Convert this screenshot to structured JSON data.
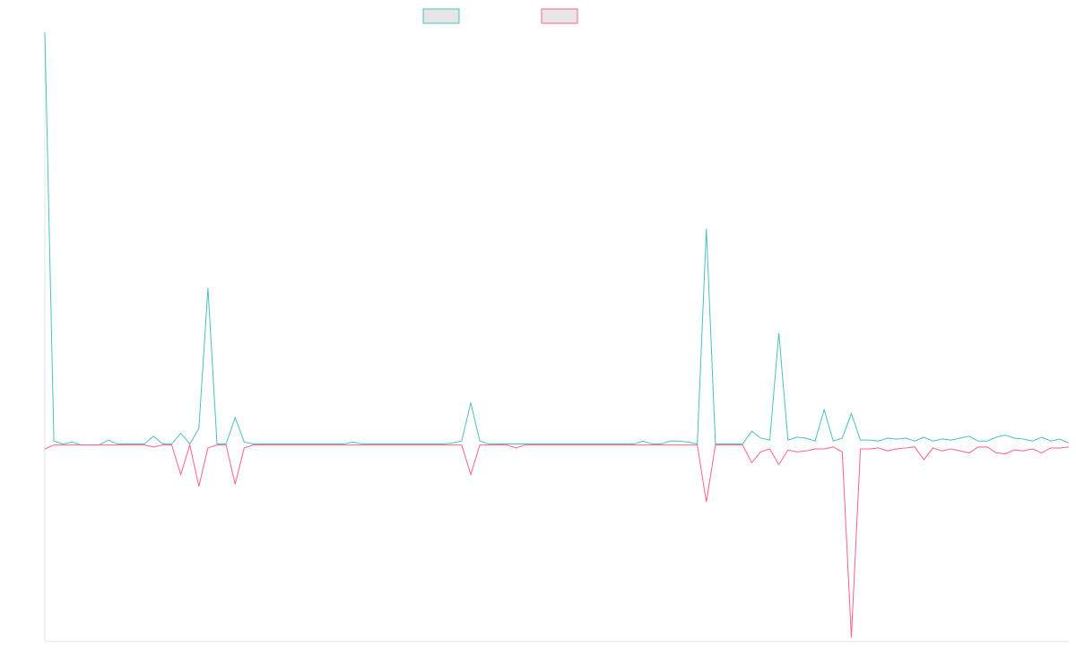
{
  "chart_data": {
    "type": "line",
    "title": "",
    "xlabel": "",
    "ylabel": "",
    "grid": false,
    "legend": "top-center",
    "ylim": [
      -100,
      210
    ],
    "series": [
      {
        "color": "#4bc0c0",
        "legend_fill": "#e6e6e6",
        "values": [
          210,
          2,
          0.5,
          1.5,
          0,
          0,
          0,
          2.5,
          0.5,
          0.5,
          0.5,
          0.5,
          4.5,
          0.5,
          0.5,
          6,
          0.5,
          8.5,
          80,
          0.5,
          0.5,
          14,
          1.5,
          0.5,
          0.5,
          0.5,
          0.5,
          0.5,
          0.5,
          0.5,
          0.5,
          0.5,
          0.5,
          0.5,
          1.5,
          0.5,
          0.5,
          0.5,
          0.5,
          0.5,
          0.5,
          0.5,
          0.5,
          0.5,
          0.5,
          1,
          2,
          21.5,
          2,
          0.5,
          0.5,
          0.5,
          0.5,
          0.5,
          0.5,
          0.5,
          0.5,
          0.5,
          0.5,
          0.5,
          0.5,
          0.5,
          0.5,
          0.5,
          0.5,
          0.5,
          2,
          0.5,
          0.5,
          2,
          2,
          1.5,
          0.5,
          110,
          0.5,
          0.5,
          0.5,
          0.5,
          7,
          3.5,
          2.5,
          57,
          2.5,
          4,
          3.5,
          2,
          18,
          2,
          3.5,
          16,
          2.5,
          2.5,
          2,
          3.5,
          3,
          3.5,
          2,
          4,
          2,
          3,
          2.5,
          3.5,
          4.5,
          2,
          2,
          4,
          5,
          3.5,
          3,
          2,
          4,
          2,
          3,
          1
        ]
      },
      {
        "color": "#ff6384",
        "legend_fill": "#e6e6e6",
        "values": [
          -2,
          0,
          0,
          0,
          0,
          0,
          0,
          0,
          0,
          0,
          0,
          0,
          -1,
          0,
          0,
          -15,
          0,
          -21,
          -1.5,
          0,
          0,
          -20,
          -1.5,
          0,
          0,
          0,
          0,
          0,
          0,
          0,
          0,
          0,
          0,
          0,
          0,
          0,
          0,
          0,
          0,
          0,
          0,
          0,
          0,
          0,
          0,
          0,
          0,
          -15,
          0,
          0,
          0,
          0,
          -1.5,
          0,
          0,
          0,
          0,
          0,
          0,
          0,
          0,
          0,
          0,
          0,
          0,
          0,
          0,
          0,
          0,
          0,
          0,
          0,
          0,
          -29,
          0,
          0,
          0,
          0,
          -9,
          -3.5,
          -2,
          -10,
          -2.5,
          -3.5,
          -3,
          -2,
          -2,
          -1,
          -3.5,
          -98,
          -2,
          -2,
          -1.5,
          -3,
          -2,
          -1.5,
          -1,
          -7.5,
          -1.5,
          -3,
          -2,
          -3,
          -4,
          -1,
          -1,
          -4,
          -4.5,
          -2.5,
          -3,
          -2,
          -4,
          -1.5,
          -1.5,
          -1
        ]
      }
    ]
  }
}
